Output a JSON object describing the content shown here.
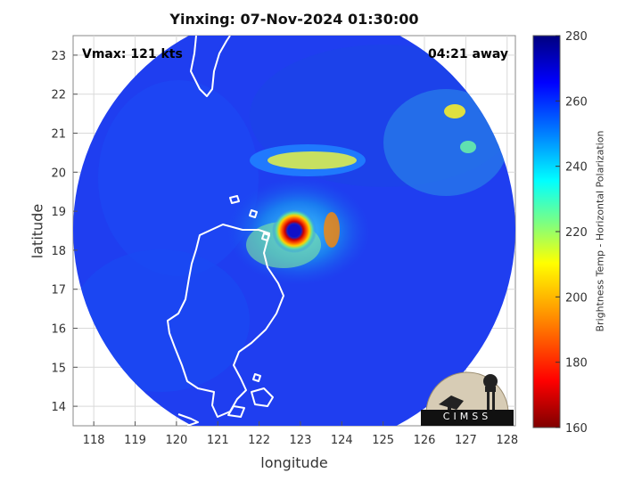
{
  "title": "Yinxing: 07-Nov-2024 01:30:00",
  "annotations": {
    "vmax": "Vmax: 121 kts",
    "away": "04:21 away"
  },
  "axes": {
    "xlabel": "longitude",
    "ylabel": "latitude",
    "xlim": [
      117.5,
      128.2
    ],
    "ylim": [
      13.5,
      23.5
    ],
    "xticks": [
      "118",
      "119",
      "120",
      "121",
      "122",
      "123",
      "124",
      "125",
      "126",
      "127",
      "128"
    ],
    "yticks": [
      "14",
      "15",
      "16",
      "17",
      "18",
      "19",
      "20",
      "21",
      "22",
      "23"
    ],
    "grid": true
  },
  "colorbar": {
    "label": "Brightness Temp - Horizontal Polarization",
    "ticks": [
      "280",
      "260",
      "240",
      "220",
      "200",
      "180",
      "160"
    ],
    "range": [
      160,
      280
    ],
    "colors": [
      "#7f0000",
      "#ff0000",
      "#ff8c00",
      "#ffff00",
      "#7fff7f",
      "#00ffff",
      "#0080ff",
      "#0000ff",
      "#00007f"
    ]
  },
  "logo": {
    "text": "CIMSS"
  },
  "chart_data": {
    "type": "heatmap",
    "title": "Yinxing: 07-Nov-2024 01:30:00",
    "xlabel": "longitude",
    "ylabel": "latitude",
    "storm_center": {
      "lon": 122.85,
      "lat": 18.45
    },
    "swath_center": {
      "lon": 123.0,
      "lat": 18.3
    },
    "vmax_kts": 121,
    "colorbar_range": [
      160,
      280
    ]
  }
}
